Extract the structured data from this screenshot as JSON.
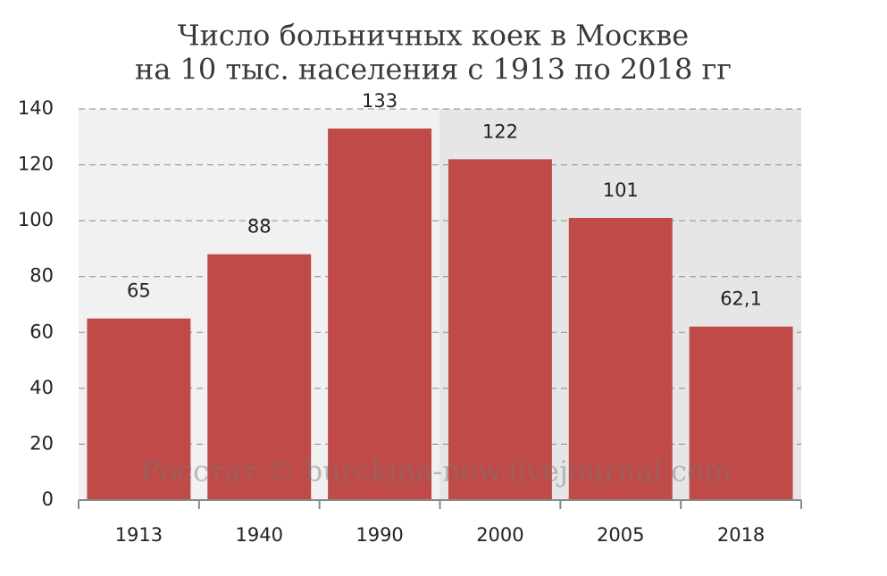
{
  "chart_data": {
    "type": "bar",
    "title": [
      "Число больничных коек в Москве",
      "на 10 тыс. населения с 1913 по 2018 гг"
    ],
    "categories": [
      "1913",
      "1940",
      "1990",
      "2000",
      "2005",
      "2018"
    ],
    "values": [
      65,
      88,
      133,
      122,
      101,
      62.1
    ],
    "value_labels": [
      "65",
      "88",
      "133",
      "122",
      "101",
      "62,1"
    ],
    "color": "#bf4a48",
    "ylim": [
      0,
      140
    ],
    "yticks": [
      0,
      20,
      40,
      60,
      80,
      100,
      120,
      140
    ],
    "grid": true,
    "source": "Росстат © burckina-new.livejournal.com"
  }
}
